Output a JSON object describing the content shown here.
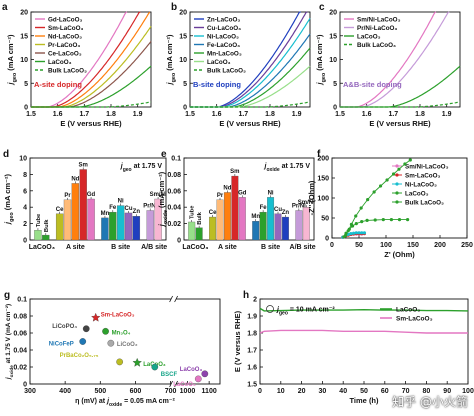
{
  "watermark": "知乎 @小火箭",
  "chart_data": [
    {
      "id": "a",
      "type": "line",
      "panel_letter": "a",
      "xlabel": "E (V versus RHE)",
      "ylabel_main": "j",
      "ylabel_sub": "geo",
      "ylabel_unit": " (mA cm⁻²)",
      "xlim": [
        1.5,
        1.95
      ],
      "ylim": [
        0,
        20
      ],
      "xticks": [
        1.5,
        1.6,
        1.7,
        1.8,
        1.9
      ],
      "yticks": [
        0,
        5,
        10,
        15,
        20
      ],
      "annotation": "A-site doping",
      "annotation_color": "#d62728",
      "series": [
        {
          "name": "Gd-LaCoO₃",
          "color": "#e377c2",
          "style": "solid",
          "onset": 1.56,
          "k": 140,
          "p": 1.6
        },
        {
          "name": "Sm-LaCoO₃",
          "color": "#d62728",
          "style": "solid",
          "onset": 1.58,
          "k": 120,
          "p": 1.6
        },
        {
          "name": "Nd-LaCoO₃",
          "color": "#ff7f0e",
          "style": "solid",
          "onset": 1.6,
          "k": 110,
          "p": 1.6
        },
        {
          "name": "Pr-LaCoO₃",
          "color": "#bcbd22",
          "style": "solid",
          "onset": 1.62,
          "k": 100,
          "p": 1.6
        },
        {
          "name": "Ce-LaCoO₃",
          "color": "#8c564b",
          "style": "solid",
          "onset": 1.64,
          "k": 90,
          "p": 1.6
        },
        {
          "name": "LaCoO₃",
          "color": "#2ca02c",
          "style": "solid",
          "onset": 1.68,
          "k": 70,
          "p": 1.6
        },
        {
          "name": "Bulk LaCoO₃",
          "color": "#2ca02c",
          "style": "dashed",
          "onset": 1.78,
          "k": 18,
          "p": 1.6
        }
      ]
    },
    {
      "id": "b",
      "type": "line",
      "panel_letter": "b",
      "xlabel": "E (V versus RHE)",
      "ylabel_main": "j",
      "ylabel_sub": "geo",
      "ylabel_unit": " (mA cm⁻²)",
      "xlim": [
        1.5,
        1.95
      ],
      "ylim": [
        0,
        20
      ],
      "xticks": [
        1.5,
        1.6,
        1.7,
        1.8,
        1.9
      ],
      "yticks": [
        0,
        5,
        10,
        15,
        20
      ],
      "annotation": "B-site doping",
      "annotation_color": "#1f3fbf",
      "series": [
        {
          "name": "Zn-LaCoO₃",
          "color": "#1f3fbf",
          "style": "solid",
          "onset": 1.6,
          "k": 130,
          "p": 1.6
        },
        {
          "name": "Cu-LaCoO₃",
          "color": "#6a3d9a",
          "style": "solid",
          "onset": 1.61,
          "k": 120,
          "p": 1.6
        },
        {
          "name": "Ni-LaCoO₃",
          "color": "#17becf",
          "style": "solid",
          "onset": 1.62,
          "k": 110,
          "p": 1.6
        },
        {
          "name": "Fe-LaCoO₃",
          "color": "#1f77b4",
          "style": "solid",
          "onset": 1.64,
          "k": 100,
          "p": 1.6
        },
        {
          "name": "Mn-LaCoO₃",
          "color": "#2ca02c",
          "style": "solid",
          "onset": 1.66,
          "k": 90,
          "p": 1.6
        },
        {
          "name": "LaCoO₃",
          "color": "#98df8a",
          "style": "solid",
          "onset": 1.68,
          "k": 70,
          "p": 1.6
        },
        {
          "name": "Bulk LaCoO₃",
          "color": "#2ca02c",
          "style": "dashed",
          "onset": 1.78,
          "k": 18,
          "p": 1.6
        }
      ]
    },
    {
      "id": "c",
      "type": "line",
      "panel_letter": "c",
      "xlabel": "E (V versus RHE)",
      "ylabel_main": "j",
      "ylabel_sub": "geo",
      "ylabel_unit": " (mA cm⁻²)",
      "xlim": [
        1.5,
        1.95
      ],
      "ylim": [
        0,
        20
      ],
      "xticks": [
        1.5,
        1.6,
        1.7,
        1.8,
        1.9
      ],
      "yticks": [
        0,
        5,
        10,
        15,
        20
      ],
      "annotation": "A&B-site doping",
      "annotation_color": "#9467bd",
      "series": [
        {
          "name": "Sm/Ni-LaCoO₃",
          "color": "#e377c2",
          "style": "solid",
          "onset": 1.56,
          "k": 140,
          "p": 1.6
        },
        {
          "name": "Pr/Ni-LaCoO₃",
          "color": "#c59bd9",
          "style": "solid",
          "onset": 1.58,
          "k": 120,
          "p": 1.6
        },
        {
          "name": "LaCoO₃",
          "color": "#2ca02c",
          "style": "solid",
          "onset": 1.68,
          "k": 70,
          "p": 1.6
        },
        {
          "name": "Bulk LaCoO₃",
          "color": "#2ca02c",
          "style": "dashed",
          "onset": 1.78,
          "k": 18,
          "p": 1.6
        }
      ]
    },
    {
      "id": "d",
      "type": "bar",
      "panel_letter": "d",
      "ylabel_main": "j",
      "ylabel_sub": "geo",
      "ylabel_unit": " (mA cm⁻²)",
      "ylim": [
        0,
        10
      ],
      "yticks": [
        0,
        2,
        4,
        6,
        8,
        10
      ],
      "header_main": "j",
      "header_sub": "geo",
      "header_rest": " at 1.75 V",
      "groups": [
        {
          "label": "LaCoO₃",
          "bars": [
            {
              "name": "Tube",
              "value": 1.2,
              "color": "#98df8a"
            },
            {
              "name": "Bulk",
              "value": 0.6,
              "color": "#2ca02c"
            }
          ]
        },
        {
          "label": "A site",
          "bars": [
            {
              "name": "Ce",
              "value": 3.2,
              "color": "#bcbd22"
            },
            {
              "name": "Pr",
              "value": 4.9,
              "color": "#ffbb78"
            },
            {
              "name": "Nd",
              "value": 6.9,
              "color": "#ff7f0e"
            },
            {
              "name": "Sm",
              "value": 8.6,
              "color": "#d62728"
            },
            {
              "name": "Gd",
              "value": 5.0,
              "color": "#e377c2"
            }
          ]
        },
        {
          "label": "B site",
          "bars": [
            {
              "name": "Mn",
              "value": 2.7,
              "color": "#1f77b4"
            },
            {
              "name": "Fe",
              "value": 3.4,
              "color": "#2ca02c"
            },
            {
              "name": "Ni",
              "value": 4.2,
              "color": "#17becf"
            },
            {
              "name": "Cu",
              "value": 3.3,
              "color": "#9467bd"
            },
            {
              "name": "Zn",
              "value": 2.9,
              "color": "#1f3fbf"
            }
          ]
        },
        {
          "label": "A/B site",
          "bars": [
            {
              "name": "Pr/Ni",
              "value": 3.6,
              "color": "#c59bd9"
            },
            {
              "name": "Sm/Ni",
              "value": 5.0,
              "color": "#f7b6d2"
            }
          ]
        }
      ]
    },
    {
      "id": "e",
      "type": "bar",
      "panel_letter": "e",
      "ylabel_main": "j",
      "ylabel_sub": "oxide",
      "ylabel_unit": " (mA cm⁻²)",
      "ylim": [
        0,
        0.1
      ],
      "yticks": [
        0,
        0.02,
        0.04,
        0.06,
        0.08,
        0.1
      ],
      "header_main": "j",
      "header_sub": "oxide",
      "header_rest": " at 1.75 V",
      "groups": [
        {
          "label": "LaCoO₃",
          "bars": [
            {
              "name": "Tube",
              "value": 0.022,
              "color": "#98df8a"
            },
            {
              "name": "Bulk",
              "value": 0.015,
              "color": "#2ca02c"
            }
          ]
        },
        {
          "label": "A site",
          "bars": [
            {
              "name": "Ce",
              "value": 0.028,
              "color": "#bcbd22"
            },
            {
              "name": "Pr",
              "value": 0.049,
              "color": "#ffbb78"
            },
            {
              "name": "Nd",
              "value": 0.058,
              "color": "#ff7f0e"
            },
            {
              "name": "Sm",
              "value": 0.078,
              "color": "#d62728"
            },
            {
              "name": "Gd",
              "value": 0.052,
              "color": "#e377c2"
            }
          ]
        },
        {
          "label": "B site",
          "bars": [
            {
              "name": "Mn",
              "value": 0.023,
              "color": "#1f77b4"
            },
            {
              "name": "Fe",
              "value": 0.034,
              "color": "#2ca02c"
            },
            {
              "name": "Ni",
              "value": 0.052,
              "color": "#17becf"
            },
            {
              "name": "Cu",
              "value": 0.032,
              "color": "#9467bd"
            },
            {
              "name": "Zn",
              "value": 0.028,
              "color": "#1f3fbf"
            }
          ]
        },
        {
          "label": "A/B site",
          "bars": [
            {
              "name": "Pr/Ni",
              "value": 0.036,
              "color": "#c59bd9"
            },
            {
              "name": "Sm/Ni",
              "value": 0.04,
              "color": "#f7b6d2"
            }
          ]
        }
      ]
    },
    {
      "id": "f",
      "type": "scatter",
      "panel_letter": "f",
      "xlabel": "Z' (Ohm)",
      "ylabel": "-Z'' (Ohm)",
      "xlim": [
        0,
        250
      ],
      "ylim": [
        0,
        200
      ],
      "xticks": [
        0,
        50,
        100,
        150,
        200,
        250
      ],
      "yticks": [
        0,
        50,
        100,
        150,
        200
      ],
      "series": [
        {
          "name": "Sm/Ni-LaCoO₃",
          "color": "#e377c2",
          "points": [
            [
              20,
              2
            ],
            [
              25,
              6
            ],
            [
              30,
              8
            ],
            [
              35,
              9
            ],
            [
              40,
              10
            ],
            [
              45,
              10
            ],
            [
              50,
              10
            ],
            [
              55,
              10
            ]
          ]
        },
        {
          "name": "Sm-LaCoO₃",
          "color": "#d62728",
          "points": [
            [
              20,
              2
            ],
            [
              25,
              5
            ],
            [
              30,
              7
            ],
            [
              35,
              9
            ],
            [
              40,
              10
            ],
            [
              45,
              11
            ],
            [
              50,
              11
            ],
            [
              55,
              11
            ],
            [
              60,
              11
            ]
          ]
        },
        {
          "name": "Ni-LaCoO₃",
          "color": "#17becf",
          "points": [
            [
              20,
              2
            ],
            [
              25,
              6
            ],
            [
              30,
              9
            ],
            [
              35,
              11
            ],
            [
              40,
              12
            ],
            [
              45,
              13
            ],
            [
              50,
              13
            ],
            [
              55,
              13
            ],
            [
              60,
              13
            ]
          ]
        },
        {
          "name": "LaCoO₃",
          "color": "#2ca02c",
          "points": [
            [
              22,
              3
            ],
            [
              26,
              12
            ],
            [
              32,
              22
            ],
            [
              38,
              30
            ],
            [
              45,
              36
            ],
            [
              55,
              41
            ],
            [
              65,
              44
            ],
            [
              80,
              45
            ],
            [
              95,
              46
            ],
            [
              110,
              46
            ],
            [
              125,
              46
            ],
            [
              140,
              46
            ]
          ]
        },
        {
          "name": "Bulk LaCoO₃",
          "color": "#2ca02c",
          "points": [
            [
              25,
              6
            ],
            [
              30,
              18
            ],
            [
              36,
              34
            ],
            [
              44,
              55
            ],
            [
              54,
              75
            ],
            [
              66,
              96
            ],
            [
              78,
              115
            ],
            [
              90,
              130
            ],
            [
              102,
              145
            ],
            [
              114,
              160
            ],
            [
              124,
              172
            ],
            [
              135,
              185
            ],
            [
              145,
              195
            ]
          ]
        }
      ]
    },
    {
      "id": "g",
      "type": "scatter",
      "panel_letter": "g",
      "xlabel_main": "η (mV) at ",
      "xlabel_sub": "oxide",
      "xlabel_rest": " = 0.05 mA cm⁻²",
      "ylabel_main": "j",
      "ylabel_sub": "oxide",
      "ylabel_rest": " at 1.75 V (mA cm⁻²)",
      "ylim": [
        0,
        0.1
      ],
      "yticks": [
        0,
        0.02,
        0.04,
        0.06,
        0.08,
        0.1
      ],
      "xticks_left": [
        300,
        400,
        500,
        600,
        700
      ],
      "xticks_right": [
        1000,
        1100
      ],
      "xbreak": [
        700,
        950
      ],
      "points": [
        {
          "label": "Sm-LaCoO₃",
          "x": 487,
          "y": 0.078,
          "color": "#d62728",
          "marker": "star"
        },
        {
          "label": "LiCoPO₄",
          "x": 460,
          "y": 0.065,
          "color": "#444444",
          "marker": "circle"
        },
        {
          "label": "Mn₃O₄",
          "x": 515,
          "y": 0.062,
          "color": "#2ca02c",
          "marker": "circle"
        },
        {
          "label": "NiCoFeP",
          "x": 450,
          "y": 0.05,
          "color": "#1f77b4",
          "marker": "circle"
        },
        {
          "label": "LiCoO₂",
          "x": 530,
          "y": 0.048,
          "color": "#aaaaaa",
          "marker": "circle"
        },
        {
          "label": "PrBaCo₂O₅.₇₅",
          "x": 555,
          "y": 0.026,
          "color": "#bcbd22",
          "marker": "circle"
        },
        {
          "label": "LaCoO₃",
          "x": 605,
          "y": 0.025,
          "color": "#2ca02c",
          "marker": "star"
        },
        {
          "label": "BSCF",
          "x": 655,
          "y": 0.02,
          "color": "#17a589",
          "marker": "circle"
        },
        {
          "label": "LaCoO₃",
          "x": 1080,
          "y": 0.012,
          "color": "#8e44ad",
          "marker": "circle"
        },
        {
          "label": "LaCoO₃",
          "x": 1050,
          "y": 0.006,
          "color": "#e377c2",
          "marker": "circle"
        }
      ]
    },
    {
      "id": "h",
      "type": "line",
      "panel_letter": "h",
      "xlabel": "Time (h)",
      "ylabel": "E (V versus RHE)",
      "xlim": [
        0,
        100
      ],
      "ylim": [
        1.5,
        2.0
      ],
      "xticks": [
        0,
        10,
        20,
        30,
        40,
        50,
        60,
        70,
        80,
        90,
        100
      ],
      "yticks": [
        1.5,
        1.6,
        1.7,
        1.8,
        1.9,
        2.0
      ],
      "annotation_main": "j",
      "annotation_sub": "geo",
      "annotation_rest": " = 10 mA cm⁻²",
      "series": [
        {
          "name": "LaCoO₃",
          "color": "#2ca02c",
          "points": [
            [
              0,
              1.945
            ],
            [
              2,
              1.93
            ],
            [
              10,
              1.932
            ],
            [
              20,
              1.935
            ],
            [
              30,
              1.935
            ],
            [
              40,
              1.935
            ],
            [
              50,
              1.937
            ],
            [
              60,
              1.935
            ],
            [
              70,
              1.935
            ],
            [
              80,
              1.932
            ],
            [
              90,
              1.932
            ],
            [
              100,
              1.93
            ]
          ]
        },
        {
          "name": "Sm-LaCoO₃",
          "color": "#e377c2",
          "points": [
            [
              0,
              1.8
            ],
            [
              2,
              1.81
            ],
            [
              10,
              1.815
            ],
            [
              20,
              1.815
            ],
            [
              30,
              1.815
            ],
            [
              40,
              1.81
            ],
            [
              50,
              1.81
            ],
            [
              60,
              1.81
            ],
            [
              70,
              1.805
            ],
            [
              80,
              1.8
            ],
            [
              90,
              1.8
            ],
            [
              100,
              1.8
            ]
          ]
        }
      ]
    }
  ]
}
